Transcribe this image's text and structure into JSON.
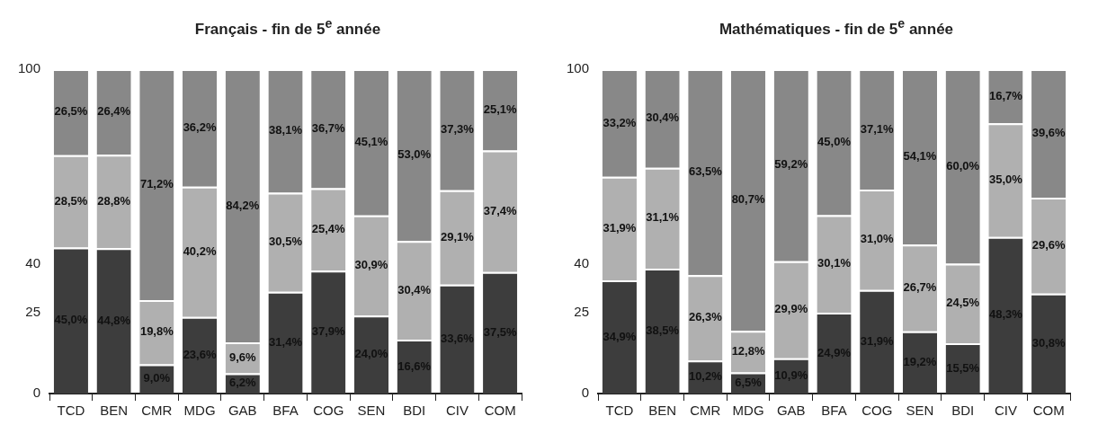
{
  "chart_data": [
    {
      "type": "bar",
      "title": "Français - fin de 5$^{e}$ année",
      "stacked": true,
      "grid": false,
      "legend": false,
      "categories": [
        "TCD",
        "BEN",
        "CMR",
        "MDG",
        "GAB",
        "BFA",
        "COG",
        "SEN",
        "BDI",
        "CIV",
        "COM"
      ],
      "ylim": [
        0,
        100
      ],
      "yticks": [
        0,
        25,
        40,
        100
      ],
      "series": [
        {
          "color": "#3d3d3d",
          "values": [
            45.0,
            44.8,
            9.0,
            23.6,
            6.2,
            31.4,
            37.9,
            24.0,
            16.6,
            33.6,
            37.5
          ],
          "value_labels": [
            "45,0%",
            "44,8%",
            "9,0%",
            "23,6%",
            "6,2%",
            "31,4%",
            "37,9%",
            "24,0%",
            "16,6%",
            "33,6%",
            "37,5%"
          ]
        },
        {
          "color": "#b0b0b0",
          "values": [
            28.5,
            28.8,
            19.8,
            40.2,
            9.6,
            30.5,
            25.4,
            30.9,
            30.4,
            29.1,
            37.4
          ],
          "value_labels": [
            "28,5%",
            "28,8%",
            "19,8%",
            "40,2%",
            "9,6%",
            "30,5%",
            "25,4%",
            "30,9%",
            "30,4%",
            "29,1%",
            "37,4%"
          ]
        },
        {
          "color": "#888888",
          "values": [
            26.5,
            26.4,
            71.2,
            36.2,
            84.2,
            38.1,
            36.7,
            45.1,
            53.0,
            37.3,
            25.1
          ],
          "value_labels": [
            "26,5%",
            "26,4%",
            "71,2%",
            "36,2%",
            "84,2%",
            "38,1%",
            "36,7%",
            "45,1%",
            "53,0%",
            "37,3%",
            "25,1%"
          ]
        }
      ]
    },
    {
      "type": "bar",
      "title": "Mathématiques - fin de 5$^{e}$ année",
      "stacked": true,
      "grid": false,
      "legend": false,
      "categories": [
        "TCD",
        "BEN",
        "CMR",
        "MDG",
        "GAB",
        "BFA",
        "COG",
        "SEN",
        "BDI",
        "CIV",
        "COM"
      ],
      "ylim": [
        0,
        100
      ],
      "yticks": [
        0,
        25,
        40,
        100
      ],
      "series": [
        {
          "color": "#3d3d3d",
          "values": [
            34.9,
            38.5,
            10.2,
            6.5,
            10.9,
            24.9,
            31.9,
            19.2,
            15.5,
            48.3,
            30.8
          ],
          "value_labels": [
            "34,9%",
            "38,5%",
            "10,2%",
            "6,5%",
            "10,9%",
            "24,9%",
            "31,9%",
            "19,2%",
            "15,5%",
            "48,3%",
            "30,8%"
          ]
        },
        {
          "color": "#b0b0b0",
          "values": [
            31.9,
            31.1,
            26.3,
            12.8,
            29.9,
            30.1,
            31.0,
            26.7,
            24.5,
            35.0,
            29.6
          ],
          "value_labels": [
            "31,9%",
            "31,1%",
            "26,3%",
            "12,8%",
            "29,9%",
            "30,1%",
            "31,0%",
            "26,7%",
            "24,5%",
            "35,0%",
            "29,6%"
          ]
        },
        {
          "color": "#888888",
          "values": [
            33.2,
            30.4,
            63.5,
            80.7,
            59.2,
            45.0,
            37.1,
            54.1,
            60.0,
            16.7,
            39.6
          ],
          "value_labels": [
            "33,2%",
            "30,4%",
            "63,5%",
            "80,7%",
            "59,2%",
            "45,0%",
            "37,1%",
            "54,1%",
            "60,0%",
            "16,7%",
            "39,6%"
          ]
        }
      ]
    }
  ]
}
